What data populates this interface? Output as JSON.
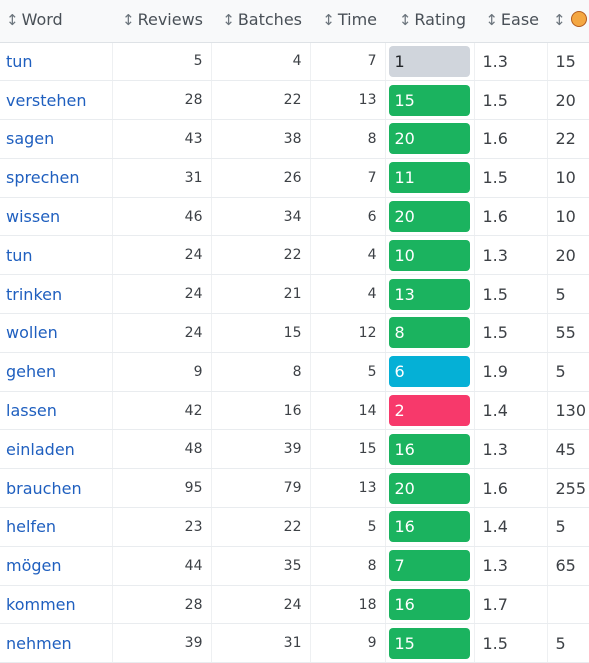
{
  "headers": {
    "word": "Word",
    "reviews": "Reviews",
    "batches": "Batches",
    "time": "Time",
    "rating": "Rating",
    "ease": "Ease",
    "sort_glyph": "↕",
    "last_icon": "clown-face-icon"
  },
  "rows": [
    {
      "word": "tun",
      "reviews": "5",
      "batches": "4",
      "time": "7",
      "rating": "1",
      "rating_color": "#d0d5dc",
      "ease": "1.3",
      "last": "15"
    },
    {
      "word": "verstehen",
      "reviews": "28",
      "batches": "22",
      "time": "13",
      "rating": "15",
      "rating_color": "#1bb35f",
      "ease": "1.5",
      "last": "20"
    },
    {
      "word": "sagen",
      "reviews": "43",
      "batches": "38",
      "time": "8",
      "rating": "20",
      "rating_color": "#1bb35f",
      "ease": "1.6",
      "last": "22"
    },
    {
      "word": "sprechen",
      "reviews": "31",
      "batches": "26",
      "time": "7",
      "rating": "11",
      "rating_color": "#1bb35f",
      "ease": "1.5",
      "last": "10"
    },
    {
      "word": "wissen",
      "reviews": "46",
      "batches": "34",
      "time": "6",
      "rating": "20",
      "rating_color": "#1bb35f",
      "ease": "1.6",
      "last": "10"
    },
    {
      "word": "tun",
      "reviews": "24",
      "batches": "22",
      "time": "4",
      "rating": "10",
      "rating_color": "#1bb35f",
      "ease": "1.3",
      "last": "20"
    },
    {
      "word": "trinken",
      "reviews": "24",
      "batches": "21",
      "time": "4",
      "rating": "13",
      "rating_color": "#1bb35f",
      "ease": "1.5",
      "last": "5"
    },
    {
      "word": "wollen",
      "reviews": "24",
      "batches": "15",
      "time": "12",
      "rating": "8",
      "rating_color": "#1bb35f",
      "ease": "1.5",
      "last": "55"
    },
    {
      "word": "gehen",
      "reviews": "9",
      "batches": "8",
      "time": "5",
      "rating": "6",
      "rating_color": "#05b0d6",
      "ease": "1.9",
      "last": "5"
    },
    {
      "word": "lassen",
      "reviews": "42",
      "batches": "16",
      "time": "14",
      "rating": "2",
      "rating_color": "#f7396b",
      "ease": "1.4",
      "last": "130"
    },
    {
      "word": "einladen",
      "reviews": "48",
      "batches": "39",
      "time": "15",
      "rating": "16",
      "rating_color": "#1bb35f",
      "ease": "1.3",
      "last": "45"
    },
    {
      "word": "brauchen",
      "reviews": "95",
      "batches": "79",
      "time": "13",
      "rating": "20",
      "rating_color": "#1bb35f",
      "ease": "1.6",
      "last": "255"
    },
    {
      "word": "helfen",
      "reviews": "23",
      "batches": "22",
      "time": "5",
      "rating": "16",
      "rating_color": "#1bb35f",
      "ease": "1.4",
      "last": "5"
    },
    {
      "word": "mögen",
      "reviews": "44",
      "batches": "35",
      "time": "8",
      "rating": "7",
      "rating_color": "#1bb35f",
      "ease": "1.3",
      "last": "65"
    },
    {
      "word": "kommen",
      "reviews": "28",
      "batches": "24",
      "time": "18",
      "rating": "16",
      "rating_color": "#1bb35f",
      "ease": "1.7",
      "last": ""
    },
    {
      "word": "nehmen",
      "reviews": "39",
      "batches": "31",
      "time": "9",
      "rating": "15",
      "rating_color": "#1bb35f",
      "ease": "1.5",
      "last": "5"
    }
  ]
}
